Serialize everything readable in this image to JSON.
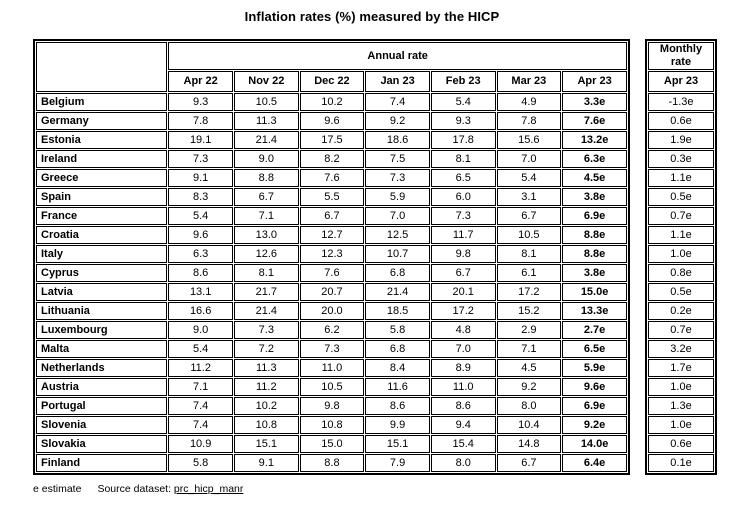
{
  "title": "Inflation rates (%) measured by the HICP",
  "table": {
    "annual_header": "Annual rate",
    "monthly_header": "Monthly rate",
    "columns": [
      "Apr 22",
      "Nov 22",
      "Dec 22",
      "Jan 23",
      "Feb 23",
      "Mar 23",
      "Apr 23"
    ],
    "monthly_column": "Apr 23",
    "rows": [
      {
        "country": "Belgium",
        "values": [
          "9.3",
          "10.5",
          "10.2",
          "7.4",
          "5.4",
          "4.9",
          "3.3e"
        ],
        "monthly": "-1.3e"
      },
      {
        "country": "Germany",
        "values": [
          "7.8",
          "11.3",
          "9.6",
          "9.2",
          "9.3",
          "7.8",
          "7.6e"
        ],
        "monthly": "0.6e"
      },
      {
        "country": "Estonia",
        "values": [
          "19.1",
          "21.4",
          "17.5",
          "18.6",
          "17.8",
          "15.6",
          "13.2e"
        ],
        "monthly": "1.9e"
      },
      {
        "country": "Ireland",
        "values": [
          "7.3",
          "9.0",
          "8.2",
          "7.5",
          "8.1",
          "7.0",
          "6.3e"
        ],
        "monthly": "0.3e"
      },
      {
        "country": "Greece",
        "values": [
          "9.1",
          "8.8",
          "7.6",
          "7.3",
          "6.5",
          "5.4",
          "4.5e"
        ],
        "monthly": "1.1e"
      },
      {
        "country": "Spain",
        "values": [
          "8.3",
          "6.7",
          "5.5",
          "5.9",
          "6.0",
          "3.1",
          "3.8e"
        ],
        "monthly": "0.5e"
      },
      {
        "country": "France",
        "values": [
          "5.4",
          "7.1",
          "6.7",
          "7.0",
          "7.3",
          "6.7",
          "6.9e"
        ],
        "monthly": "0.7e"
      },
      {
        "country": "Croatia",
        "values": [
          "9.6",
          "13.0",
          "12.7",
          "12.5",
          "11.7",
          "10.5",
          "8.8e"
        ],
        "monthly": "1.1e"
      },
      {
        "country": "Italy",
        "values": [
          "6.3",
          "12.6",
          "12.3",
          "10.7",
          "9.8",
          "8.1",
          "8.8e"
        ],
        "monthly": "1.0e"
      },
      {
        "country": "Cyprus",
        "values": [
          "8.6",
          "8.1",
          "7.6",
          "6.8",
          "6.7",
          "6.1",
          "3.8e"
        ],
        "monthly": "0.8e"
      },
      {
        "country": "Latvia",
        "values": [
          "13.1",
          "21.7",
          "20.7",
          "21.4",
          "20.1",
          "17.2",
          "15.0e"
        ],
        "monthly": "0.5e"
      },
      {
        "country": "Lithuania",
        "values": [
          "16.6",
          "21.4",
          "20.0",
          "18.5",
          "17.2",
          "15.2",
          "13.3e"
        ],
        "monthly": "0.2e"
      },
      {
        "country": "Luxembourg",
        "values": [
          "9.0",
          "7.3",
          "6.2",
          "5.8",
          "4.8",
          "2.9",
          "2.7e"
        ],
        "monthly": "0.7e"
      },
      {
        "country": "Malta",
        "values": [
          "5.4",
          "7.2",
          "7.3",
          "6.8",
          "7.0",
          "7.1",
          "6.5e"
        ],
        "monthly": "3.2e"
      },
      {
        "country": "Netherlands",
        "values": [
          "11.2",
          "11.3",
          "11.0",
          "8.4",
          "8.9",
          "4.5",
          "5.9e"
        ],
        "monthly": "1.7e"
      },
      {
        "country": "Austria",
        "values": [
          "7.1",
          "11.2",
          "10.5",
          "11.6",
          "11.0",
          "9.2",
          "9.6e"
        ],
        "monthly": "1.0e"
      },
      {
        "country": "Portugal",
        "values": [
          "7.4",
          "10.2",
          "9.8",
          "8.6",
          "8.6",
          "8.0",
          "6.9e"
        ],
        "monthly": "1.3e"
      },
      {
        "country": "Slovenia",
        "values": [
          "7.4",
          "10.8",
          "10.8",
          "9.9",
          "9.4",
          "10.4",
          "9.2e"
        ],
        "monthly": "1.0e"
      },
      {
        "country": "Slovakia",
        "values": [
          "10.9",
          "15.1",
          "15.0",
          "15.1",
          "15.4",
          "14.8",
          "14.0e"
        ],
        "monthly": "0.6e"
      },
      {
        "country": "Finland",
        "values": [
          "5.8",
          "9.1",
          "8.8",
          "7.9",
          "8.0",
          "6.7",
          "6.4e"
        ],
        "monthly": "0.1e"
      }
    ]
  },
  "footer": {
    "note": "e estimate",
    "source_label": "Source dataset:",
    "source_link": "prc_hicp_manr"
  }
}
